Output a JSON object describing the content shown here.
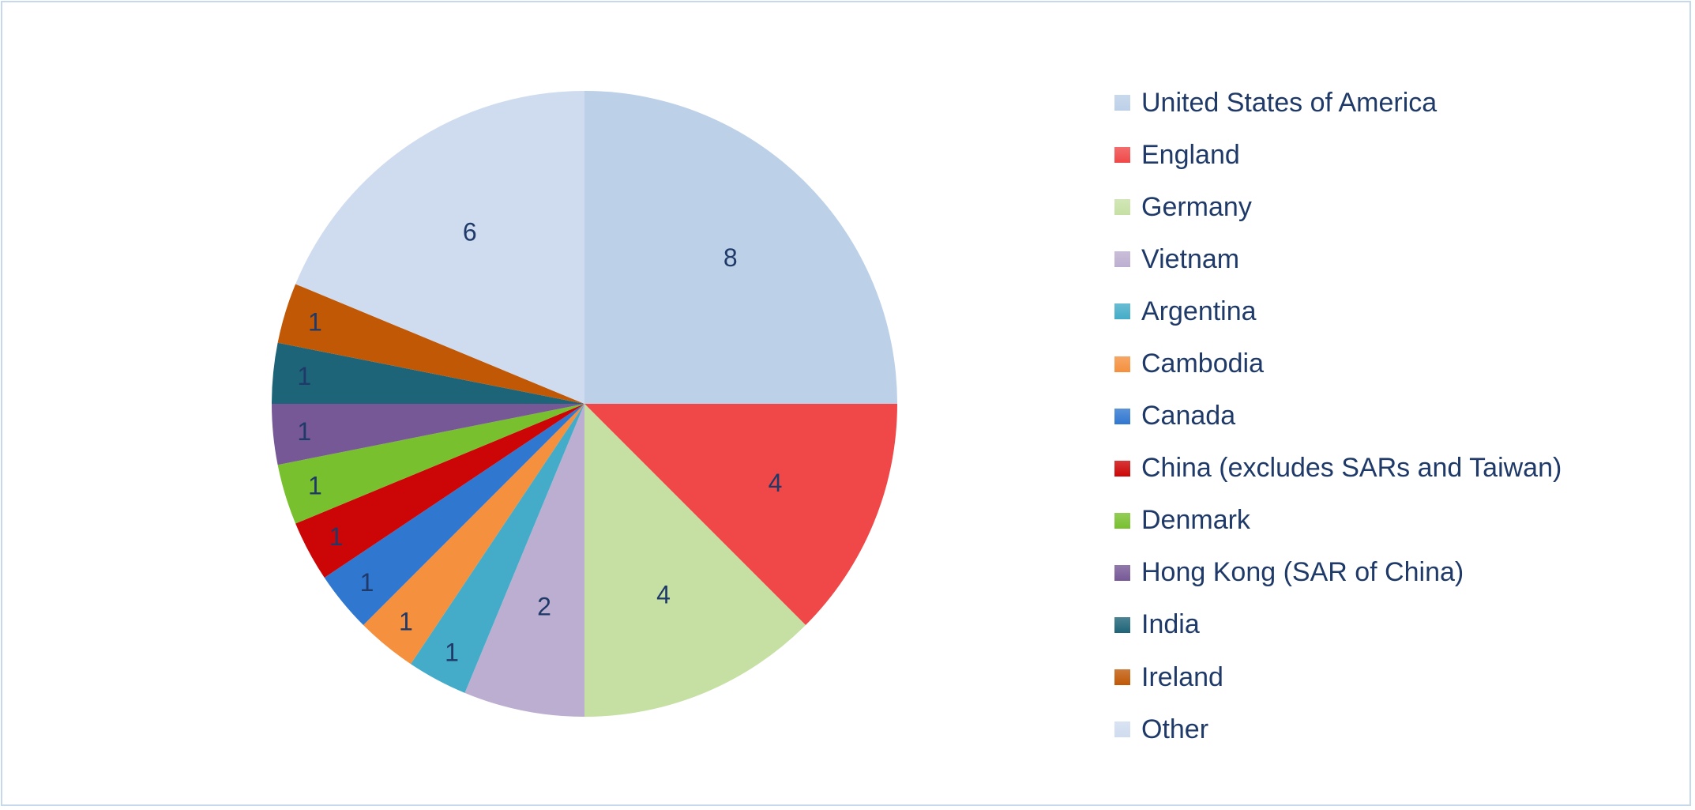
{
  "chart_data": {
    "type": "pie",
    "categories": [
      "United States of America",
      "England",
      "Germany",
      "Vietnam",
      "Argentina",
      "Cambodia",
      "Canada",
      "China (excludes SARs and Taiwan)",
      "Denmark",
      "Hong Kong (SAR of China)",
      "India",
      "Ireland",
      "Other"
    ],
    "values": [
      8,
      4,
      4,
      2,
      1,
      1,
      1,
      1,
      1,
      1,
      1,
      1,
      6
    ],
    "colors": [
      "#bcd0e8",
      "#f04848",
      "#c6e0a4",
      "#bcaed0",
      "#44acc8",
      "#f4903e",
      "#3077d0",
      "#cc0606",
      "#78c02e",
      "#765896",
      "#1e6478",
      "#c05806",
      "#cfdcef"
    ],
    "data_labels": [
      "8",
      "4",
      "4",
      "2",
      "1",
      "1",
      "1",
      "1",
      "1",
      "1",
      "1",
      "1",
      "6"
    ],
    "start_angle": "12 o'clock, clockwise",
    "legend_position": "right",
    "title": ""
  }
}
